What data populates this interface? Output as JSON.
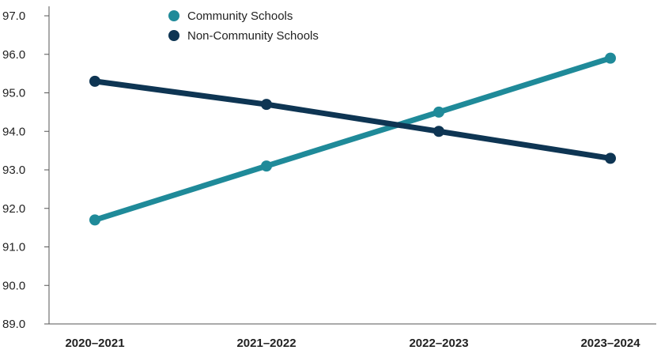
{
  "chart_data": {
    "type": "line",
    "categories": [
      "2020–2021",
      "2021–2022",
      "2022–2023",
      "2023–2024"
    ],
    "series": [
      {
        "name": "Community Schools",
        "values": [
          91.7,
          93.1,
          94.5,
          95.9
        ],
        "color": "#1f8a99"
      },
      {
        "name": "Non-Community Schools",
        "values": [
          95.3,
          94.7,
          94.0,
          93.3
        ],
        "color": "#0e3553"
      }
    ],
    "yticks": [
      "89.0",
      "90.0",
      "91.0",
      "92.0",
      "93.0",
      "94.0",
      "95.0",
      "96.0",
      "97.0"
    ],
    "ylim": [
      89,
      97
    ],
    "axis_color": "#555555",
    "grid": false,
    "legend_position": "top-left"
  }
}
